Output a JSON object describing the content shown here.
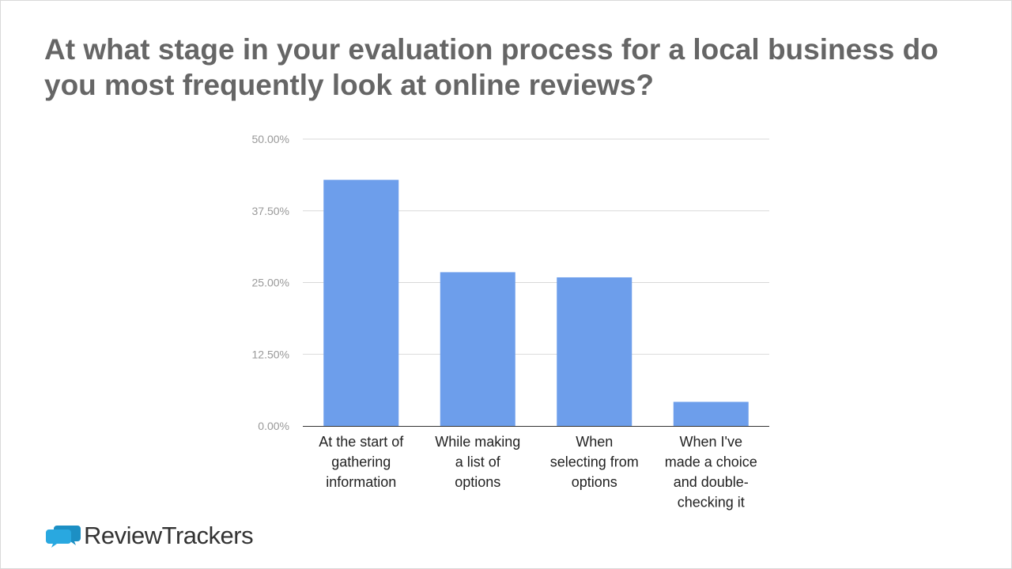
{
  "title": "At what stage in your evaluation process for a local business do you most frequently look at online reviews?",
  "brand": {
    "word1": "Review",
    "word2": "Trackers",
    "accent": "#29a8e0"
  },
  "colors": {
    "bar": "#6d9eeb",
    "grid": "#d9d9d9",
    "axis": "#333333"
  },
  "chart_data": {
    "type": "bar",
    "categories": [
      [
        "At the start of",
        "gathering",
        "information"
      ],
      [
        "While making",
        "a list of",
        "options"
      ],
      [
        "When",
        "selecting from",
        "options"
      ],
      [
        "When I've",
        "made a choice",
        "and double-",
        "checking it"
      ]
    ],
    "values": [
      42.9,
      26.8,
      25.9,
      4.2
    ],
    "yticks": [
      "0.00%",
      "12.50%",
      "25.00%",
      "37.50%",
      "50.00%"
    ],
    "ylim": [
      0,
      50
    ],
    "grid": true,
    "legend": "none"
  }
}
